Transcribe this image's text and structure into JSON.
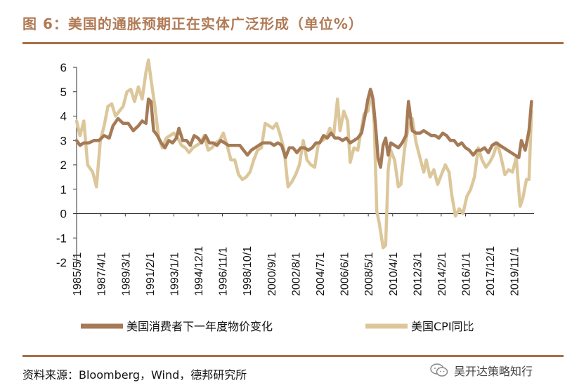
{
  "header": {
    "title": "图 6：美国的通胀预期正在实体广泛形成（单位%）"
  },
  "footer": {
    "source": "资料来源：Bloomberg，Wind，德邦研究所",
    "watermark": "吴开达策略知行",
    "watermark_icon": "wechat-icon"
  },
  "colors": {
    "expectation": "#a57a56",
    "cpi": "#dcc79b",
    "accent": "#a86e46"
  },
  "chart_data": {
    "type": "line",
    "title": "美国的通胀预期正在实体广泛形成（单位%）",
    "xlabel": "",
    "ylabel": "",
    "ylim": [
      -2,
      6
    ],
    "yticks": [
      "6",
      "5",
      "4",
      "3",
      "2",
      "1",
      "0",
      "-1",
      "-2"
    ],
    "xlim": [
      1985.33,
      2021.4
    ],
    "xticks": [
      {
        "label": "1985/5/1",
        "x": 1985.33
      },
      {
        "label": "1987/4/1",
        "x": 1987.25
      },
      {
        "label": "1989/3/1",
        "x": 1989.17
      },
      {
        "label": "1991/2/1",
        "x": 1991.08
      },
      {
        "label": "1993/1/1",
        "x": 1993.0
      },
      {
        "label": "1994/12/1",
        "x": 1994.92
      },
      {
        "label": "1996/11/1",
        "x": 1996.83
      },
      {
        "label": "1998/10/1",
        "x": 1998.75
      },
      {
        "label": "2000/9/1",
        "x": 2000.67
      },
      {
        "label": "2002/8/1",
        "x": 2002.58
      },
      {
        "label": "2004/7/1",
        "x": 2004.5
      },
      {
        "label": "2006/6/1",
        "x": 2006.42
      },
      {
        "label": "2008/5/1",
        "x": 2008.33
      },
      {
        "label": "2010/4/1",
        "x": 2010.25
      },
      {
        "label": "2012/3/1",
        "x": 2012.17
      },
      {
        "label": "2014/2/1",
        "x": 2014.08
      },
      {
        "label": "2016/1/1",
        "x": 2016.0
      },
      {
        "label": "2017/12/1",
        "x": 2017.92
      },
      {
        "label": "2019/11/1",
        "x": 2019.83
      }
    ],
    "legend_position": "bottom",
    "series": [
      {
        "name": "美国消费者下一年度物价变化",
        "color": "#a57a56",
        "points": [
          [
            1985.33,
            3.0
          ],
          [
            1985.6,
            2.8
          ],
          [
            1985.9,
            2.9
          ],
          [
            1986.3,
            2.9
          ],
          [
            1986.7,
            3.0
          ],
          [
            1987.1,
            3.0
          ],
          [
            1987.5,
            3.2
          ],
          [
            1987.9,
            3.1
          ],
          [
            1988.2,
            3.6
          ],
          [
            1988.6,
            3.9
          ],
          [
            1989.0,
            3.7
          ],
          [
            1989.4,
            3.7
          ],
          [
            1989.8,
            3.4
          ],
          [
            1990.2,
            3.6
          ],
          [
            1990.5,
            3.8
          ],
          [
            1990.8,
            3.7
          ],
          [
            1991.0,
            4.7
          ],
          [
            1991.2,
            4.6
          ],
          [
            1991.4,
            3.4
          ],
          [
            1991.7,
            3.2
          ],
          [
            1992.0,
            2.9
          ],
          [
            1992.3,
            2.7
          ],
          [
            1992.6,
            3.0
          ],
          [
            1992.9,
            2.9
          ],
          [
            1993.2,
            3.1
          ],
          [
            1993.4,
            3.5
          ],
          [
            1993.7,
            3.0
          ],
          [
            1994.0,
            3.0
          ],
          [
            1994.3,
            2.8
          ],
          [
            1994.6,
            3.2
          ],
          [
            1994.9,
            3.1
          ],
          [
            1995.2,
            2.9
          ],
          [
            1995.5,
            3.2
          ],
          [
            1995.8,
            2.9
          ],
          [
            1996.1,
            2.9
          ],
          [
            1996.4,
            2.8
          ],
          [
            1996.7,
            3.0
          ],
          [
            1997.0,
            2.9
          ],
          [
            1997.3,
            2.8
          ],
          [
            1997.6,
            2.8
          ],
          [
            1997.9,
            2.8
          ],
          [
            1998.2,
            2.8
          ],
          [
            1998.5,
            2.6
          ],
          [
            1998.8,
            2.4
          ],
          [
            1999.1,
            2.6
          ],
          [
            1999.4,
            2.7
          ],
          [
            1999.7,
            2.8
          ],
          [
            2000.0,
            2.9
          ],
          [
            2000.3,
            2.9
          ],
          [
            2000.6,
            2.9
          ],
          [
            2000.9,
            2.8
          ],
          [
            2001.2,
            2.9
          ],
          [
            2001.5,
            2.8
          ],
          [
            2001.8,
            2.3
          ],
          [
            2002.1,
            2.7
          ],
          [
            2002.4,
            2.7
          ],
          [
            2002.7,
            2.5
          ],
          [
            2003.0,
            2.7
          ],
          [
            2003.3,
            2.7
          ],
          [
            2003.6,
            2.6
          ],
          [
            2003.9,
            2.7
          ],
          [
            2004.2,
            2.9
          ],
          [
            2004.5,
            2.9
          ],
          [
            2004.8,
            3.2
          ],
          [
            2005.1,
            3.1
          ],
          [
            2005.4,
            3.3
          ],
          [
            2005.7,
            3.1
          ],
          [
            2006.0,
            3.1
          ],
          [
            2006.3,
            3.0
          ],
          [
            2006.6,
            3.1
          ],
          [
            2006.9,
            2.9
          ],
          [
            2007.2,
            3.0
          ],
          [
            2007.5,
            3.1
          ],
          [
            2007.8,
            3.3
          ],
          [
            2008.1,
            4.1
          ],
          [
            2008.3,
            4.7
          ],
          [
            2008.5,
            5.1
          ],
          [
            2008.7,
            4.7
          ],
          [
            2008.9,
            3.6
          ],
          [
            2009.1,
            2.3
          ],
          [
            2009.3,
            1.9
          ],
          [
            2009.5,
            2.8
          ],
          [
            2009.7,
            3.1
          ],
          [
            2009.9,
            2.4
          ],
          [
            2010.1,
            2.9
          ],
          [
            2010.4,
            2.8
          ],
          [
            2010.7,
            2.7
          ],
          [
            2011.0,
            2.9
          ],
          [
            2011.3,
            3.2
          ],
          [
            2011.5,
            4.6
          ],
          [
            2011.8,
            3.4
          ],
          [
            2012.1,
            3.3
          ],
          [
            2012.4,
            3.3
          ],
          [
            2012.7,
            3.4
          ],
          [
            2013.0,
            3.3
          ],
          [
            2013.3,
            3.2
          ],
          [
            2013.6,
            3.2
          ],
          [
            2013.9,
            3.1
          ],
          [
            2014.2,
            3.3
          ],
          [
            2014.5,
            3.2
          ],
          [
            2014.8,
            3.0
          ],
          [
            2015.1,
            3.0
          ],
          [
            2015.4,
            2.8
          ],
          [
            2015.7,
            2.9
          ],
          [
            2016.0,
            2.7
          ],
          [
            2016.3,
            2.6
          ],
          [
            2016.6,
            2.4
          ],
          [
            2016.9,
            2.6
          ],
          [
            2017.2,
            2.6
          ],
          [
            2017.5,
            2.7
          ],
          [
            2017.8,
            2.5
          ],
          [
            2018.1,
            2.8
          ],
          [
            2018.4,
            2.9
          ],
          [
            2018.7,
            2.8
          ],
          [
            2019.0,
            2.7
          ],
          [
            2019.3,
            2.6
          ],
          [
            2019.6,
            2.5
          ],
          [
            2019.9,
            2.4
          ],
          [
            2020.2,
            2.3
          ],
          [
            2020.4,
            3.0
          ],
          [
            2020.7,
            2.6
          ],
          [
            2021.0,
            3.4
          ],
          [
            2021.2,
            4.6
          ]
        ]
      },
      {
        "name": "美国CPI同比",
        "color": "#dcc79b",
        "points": [
          [
            1985.33,
            3.8
          ],
          [
            1985.6,
            3.2
          ],
          [
            1985.9,
            3.8
          ],
          [
            1986.2,
            2.0
          ],
          [
            1986.6,
            1.7
          ],
          [
            1986.9,
            1.1
          ],
          [
            1987.2,
            3.0
          ],
          [
            1987.5,
            3.6
          ],
          [
            1987.8,
            4.4
          ],
          [
            1988.1,
            4.5
          ],
          [
            1988.4,
            4.0
          ],
          [
            1988.7,
            4.2
          ],
          [
            1989.0,
            4.4
          ],
          [
            1989.3,
            5.0
          ],
          [
            1989.6,
            5.1
          ],
          [
            1989.9,
            4.6
          ],
          [
            1990.2,
            5.2
          ],
          [
            1990.5,
            4.7
          ],
          [
            1990.8,
            5.8
          ],
          [
            1991.0,
            6.3
          ],
          [
            1991.2,
            5.5
          ],
          [
            1991.5,
            4.4
          ],
          [
            1991.8,
            3.1
          ],
          [
            1992.1,
            2.7
          ],
          [
            1992.4,
            3.1
          ],
          [
            1992.7,
            3.2
          ],
          [
            1993.0,
            3.3
          ],
          [
            1993.3,
            3.1
          ],
          [
            1993.6,
            2.8
          ],
          [
            1993.9,
            2.7
          ],
          [
            1994.2,
            2.5
          ],
          [
            1994.5,
            2.7
          ],
          [
            1994.8,
            2.8
          ],
          [
            1995.1,
            2.9
          ],
          [
            1995.4,
            3.2
          ],
          [
            1995.7,
            2.6
          ],
          [
            1996.0,
            2.7
          ],
          [
            1996.3,
            2.9
          ],
          [
            1996.6,
            3.0
          ],
          [
            1996.9,
            3.3
          ],
          [
            1997.2,
            2.8
          ],
          [
            1997.5,
            2.2
          ],
          [
            1997.8,
            2.2
          ],
          [
            1998.1,
            1.6
          ],
          [
            1998.4,
            1.4
          ],
          [
            1998.7,
            1.5
          ],
          [
            1999.0,
            1.7
          ],
          [
            1999.3,
            2.2
          ],
          [
            1999.6,
            2.6
          ],
          [
            1999.9,
            2.7
          ],
          [
            2000.2,
            3.7
          ],
          [
            2000.5,
            3.6
          ],
          [
            2000.8,
            3.5
          ],
          [
            2001.1,
            3.7
          ],
          [
            2001.4,
            3.2
          ],
          [
            2001.7,
            2.6
          ],
          [
            2002.0,
            1.1
          ],
          [
            2002.3,
            1.3
          ],
          [
            2002.6,
            1.6
          ],
          [
            2002.9,
            2.0
          ],
          [
            2003.2,
            3.0
          ],
          [
            2003.5,
            2.2
          ],
          [
            2003.8,
            2.0
          ],
          [
            2004.1,
            1.9
          ],
          [
            2004.4,
            2.9
          ],
          [
            2004.7,
            3.0
          ],
          [
            2005.0,
            3.1
          ],
          [
            2005.3,
            3.5
          ],
          [
            2005.6,
            3.2
          ],
          [
            2005.9,
            4.7
          ],
          [
            2006.1,
            3.4
          ],
          [
            2006.4,
            4.2
          ],
          [
            2006.7,
            3.8
          ],
          [
            2006.9,
            2.1
          ],
          [
            2007.2,
            2.7
          ],
          [
            2007.5,
            2.6
          ],
          [
            2007.8,
            3.5
          ],
          [
            2008.0,
            4.1
          ],
          [
            2008.3,
            4.2
          ],
          [
            2008.6,
            5.0
          ],
          [
            2008.8,
            3.7
          ],
          [
            2009.0,
            0.1
          ],
          [
            2009.2,
            -0.4
          ],
          [
            2009.5,
            -1.4
          ],
          [
            2009.7,
            -1.3
          ],
          [
            2009.9,
            1.8
          ],
          [
            2010.1,
            2.6
          ],
          [
            2010.4,
            2.2
          ],
          [
            2010.7,
            1.1
          ],
          [
            2010.9,
            1.2
          ],
          [
            2011.2,
            2.7
          ],
          [
            2011.5,
            3.6
          ],
          [
            2011.8,
            3.9
          ],
          [
            2012.1,
            2.9
          ],
          [
            2012.4,
            2.3
          ],
          [
            2012.7,
            1.7
          ],
          [
            2012.9,
            2.2
          ],
          [
            2013.2,
            1.5
          ],
          [
            2013.5,
            1.8
          ],
          [
            2013.8,
            1.2
          ],
          [
            2014.1,
            1.6
          ],
          [
            2014.4,
            2.0
          ],
          [
            2014.7,
            1.7
          ],
          [
            2014.9,
            0.8
          ],
          [
            2015.2,
            -0.1
          ],
          [
            2015.5,
            0.2
          ],
          [
            2015.8,
            0.0
          ],
          [
            2016.1,
            0.7
          ],
          [
            2016.4,
            1.0
          ],
          [
            2016.7,
            1.5
          ],
          [
            2017.0,
            2.7
          ],
          [
            2017.3,
            2.2
          ],
          [
            2017.6,
            1.9
          ],
          [
            2017.9,
            2.1
          ],
          [
            2018.2,
            2.4
          ],
          [
            2018.5,
            2.9
          ],
          [
            2018.8,
            2.3
          ],
          [
            2019.1,
            1.6
          ],
          [
            2019.4,
            1.8
          ],
          [
            2019.7,
            1.7
          ],
          [
            2020.0,
            2.3
          ],
          [
            2020.3,
            0.3
          ],
          [
            2020.5,
            0.6
          ],
          [
            2020.8,
            1.4
          ],
          [
            2021.0,
            1.4
          ],
          [
            2021.2,
            4.2
          ]
        ]
      }
    ]
  }
}
